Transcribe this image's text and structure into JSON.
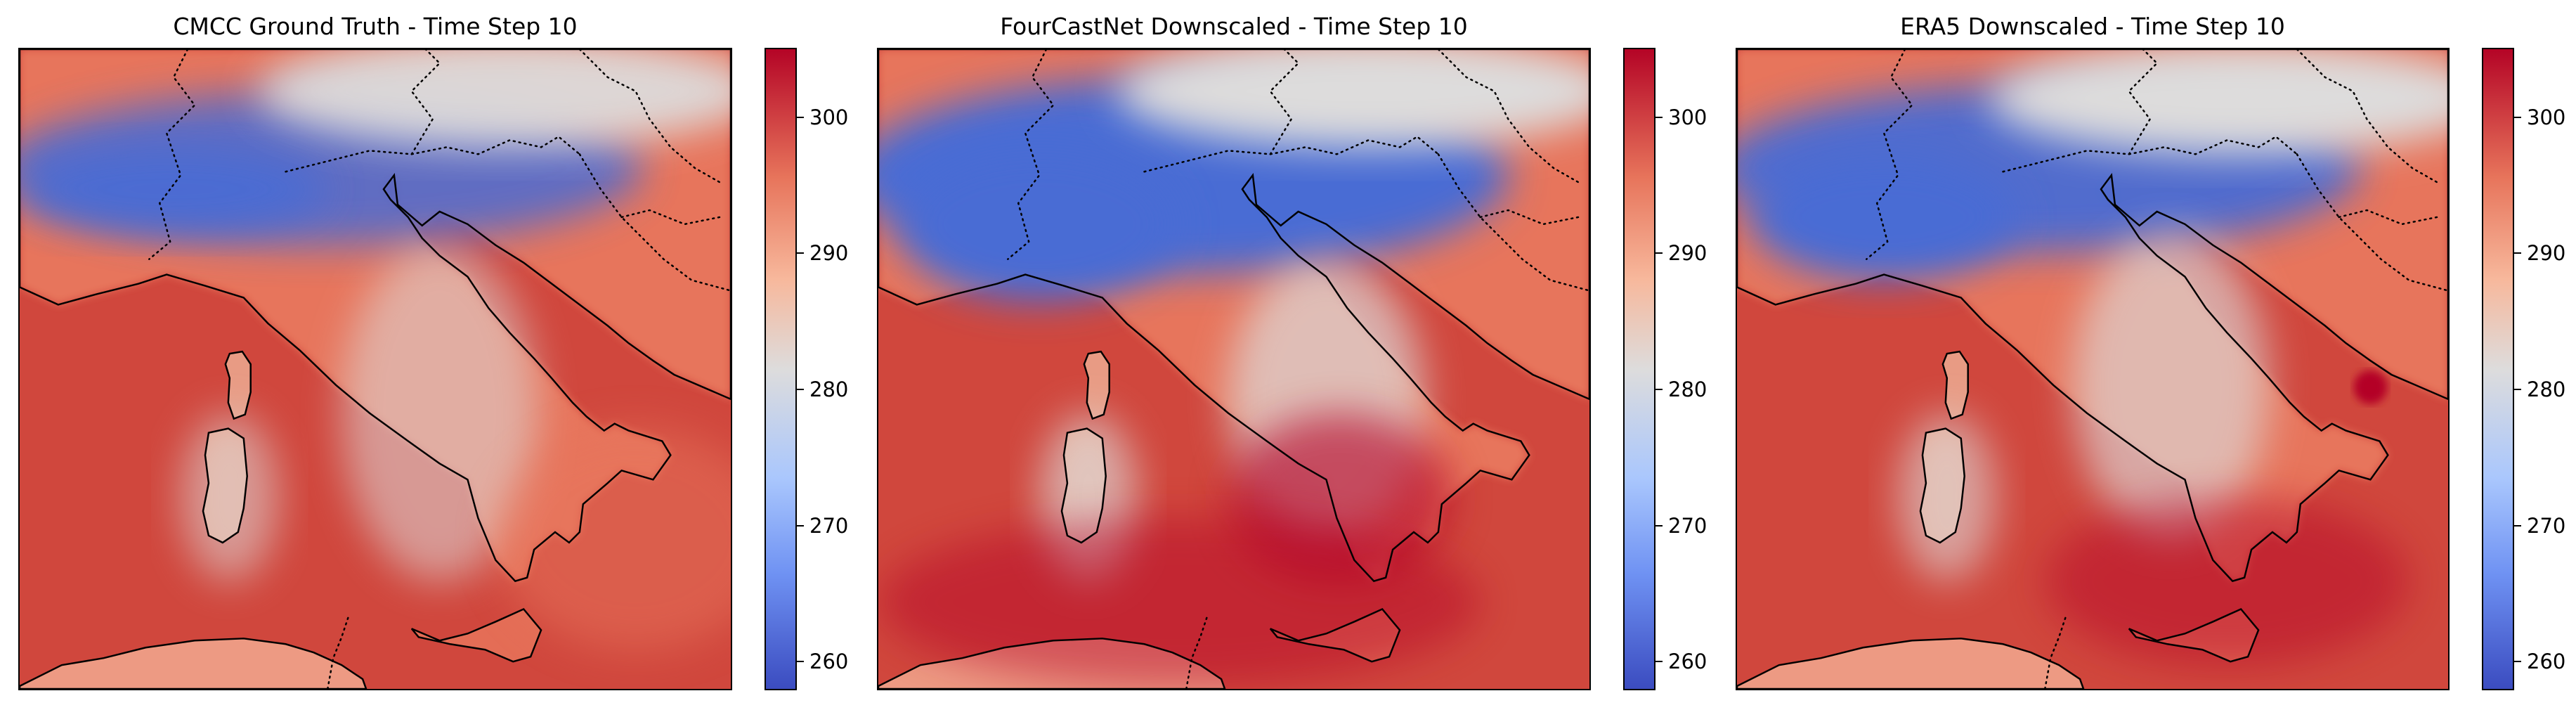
{
  "panels": [
    {
      "title": "CMCC Ground Truth - Time Step 10",
      "variant": "truth"
    },
    {
      "title": "FourCastNet Downscaled - Time Step 10",
      "variant": "fcn"
    },
    {
      "title": "ERA5 Downscaled - Time Step 10",
      "variant": "era5"
    }
  ],
  "colorbar": {
    "colormap": "coolwarm",
    "range": [
      258,
      305
    ],
    "ticks": [
      "260",
      "270",
      "280",
      "290",
      "300"
    ],
    "tick_values": [
      260,
      270,
      280,
      290,
      300
    ]
  },
  "colors": {
    "cold_alps": "#4a6cd4",
    "mid": "#dddcdc",
    "warm_land": "#e7745b",
    "sea": "#d0473d",
    "hot": "#b40426"
  }
}
